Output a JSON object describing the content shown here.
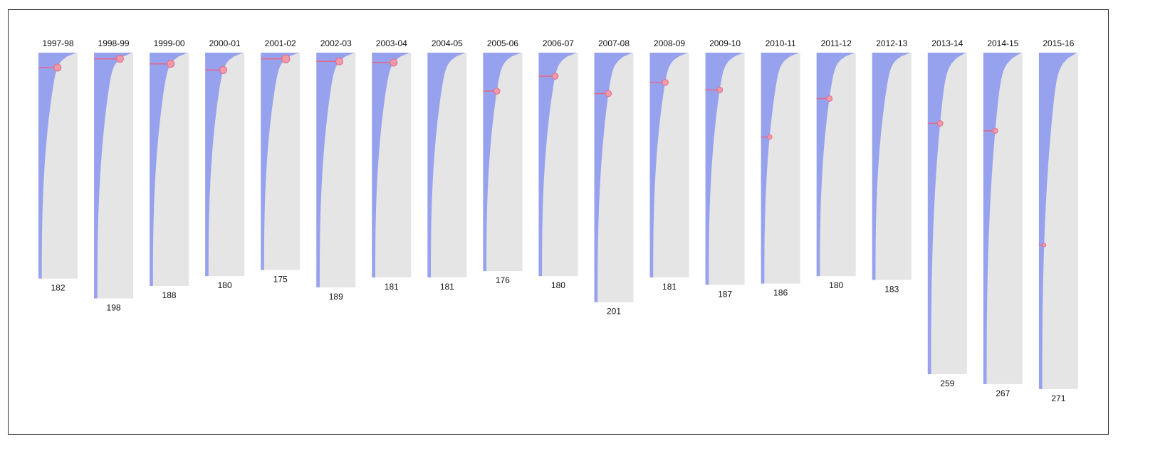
{
  "chart_data": {
    "type": "area",
    "title": "",
    "colors": {
      "area": "#97a2ee",
      "panel": "#e5e5e5",
      "highlight": "#e06b8b",
      "marker_fill": "#f29aa8"
    },
    "panels": [
      {
        "season": "1997-98",
        "count": 182,
        "highlight_rank": 12,
        "highlight_size": 1.0
      },
      {
        "season": "1998-99",
        "count": 198,
        "highlight_rank": 5,
        "highlight_size": 1.0
      },
      {
        "season": "1999-00",
        "count": 188,
        "highlight_rank": 9,
        "highlight_size": 1.0
      },
      {
        "season": "2000-01",
        "count": 180,
        "highlight_rank": 14,
        "highlight_size": 1.0
      },
      {
        "season": "2001-02",
        "count": 175,
        "highlight_rank": 5,
        "highlight_size": 1.2
      },
      {
        "season": "2002-03",
        "count": 189,
        "highlight_rank": 7,
        "highlight_size": 1.0
      },
      {
        "season": "2003-04",
        "count": 181,
        "highlight_rank": 8,
        "highlight_size": 1.0
      },
      {
        "season": "2004-05",
        "count": 181,
        "highlight_rank": null,
        "highlight_size": 0
      },
      {
        "season": "2005-06",
        "count": 176,
        "highlight_rank": 31,
        "highlight_size": 0.8
      },
      {
        "season": "2006-07",
        "count": 180,
        "highlight_rank": 19,
        "highlight_size": 0.8
      },
      {
        "season": "2007-08",
        "count": 201,
        "highlight_rank": 33,
        "highlight_size": 0.8
      },
      {
        "season": "2008-09",
        "count": 181,
        "highlight_rank": 24,
        "highlight_size": 0.8
      },
      {
        "season": "2009-10",
        "count": 187,
        "highlight_rank": 30,
        "highlight_size": 0.7
      },
      {
        "season": "2010-11",
        "count": 186,
        "highlight_rank": 68,
        "highlight_size": 0.5
      },
      {
        "season": "2011-12",
        "count": 180,
        "highlight_rank": 37,
        "highlight_size": 0.7
      },
      {
        "season": "2012-13",
        "count": 183,
        "highlight_rank": null,
        "highlight_size": 0
      },
      {
        "season": "2013-14",
        "count": 259,
        "highlight_rank": 57,
        "highlight_size": 0.7
      },
      {
        "season": "2014-15",
        "count": 267,
        "highlight_rank": 63,
        "highlight_size": 0.6
      },
      {
        "season": "2015-16",
        "count": 271,
        "highlight_rank": 155,
        "highlight_size": 0.3
      }
    ]
  }
}
